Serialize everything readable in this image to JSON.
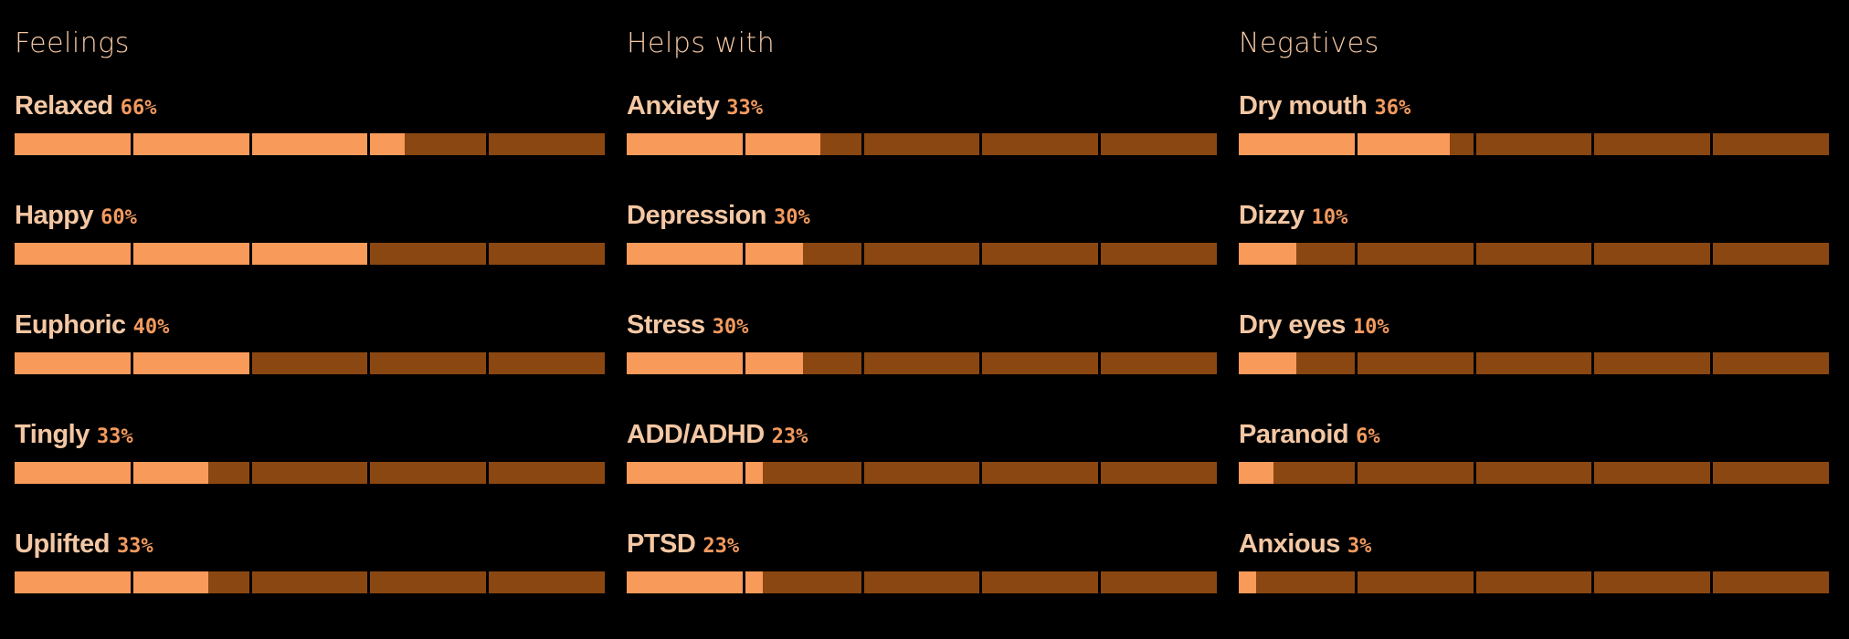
{
  "colors": {
    "background": "#000000",
    "title": "#f4c7a3",
    "label": "#f4c7a3",
    "percent": "#f39a5e",
    "bar_fill": "#f79a5a",
    "bar_track": "#8b4712"
  },
  "columns": [
    {
      "title": "Feelings",
      "items": [
        {
          "label": "Relaxed",
          "percent_text": "66%",
          "value": 66
        },
        {
          "label": "Happy",
          "percent_text": "60%",
          "value": 60
        },
        {
          "label": "Euphoric",
          "percent_text": "40%",
          "value": 40
        },
        {
          "label": "Tingly",
          "percent_text": "33%",
          "value": 33
        },
        {
          "label": "Uplifted",
          "percent_text": "33%",
          "value": 33
        }
      ]
    },
    {
      "title": "Helps with",
      "items": [
        {
          "label": "Anxiety",
          "percent_text": "33%",
          "value": 33
        },
        {
          "label": "Depression",
          "percent_text": "30%",
          "value": 30
        },
        {
          "label": "Stress",
          "percent_text": "30%",
          "value": 30
        },
        {
          "label": "ADD/ADHD",
          "percent_text": "23%",
          "value": 23
        },
        {
          "label": "PTSD",
          "percent_text": "23%",
          "value": 23
        }
      ]
    },
    {
      "title": "Negatives",
      "items": [
        {
          "label": "Dry mouth",
          "percent_text": "36%",
          "value": 36
        },
        {
          "label": "Dizzy",
          "percent_text": "10%",
          "value": 10
        },
        {
          "label": "Dry eyes",
          "percent_text": "10%",
          "value": 10
        },
        {
          "label": "Paranoid",
          "percent_text": "6%",
          "value": 6
        },
        {
          "label": "Anxious",
          "percent_text": "3%",
          "value": 3
        }
      ]
    }
  ]
}
